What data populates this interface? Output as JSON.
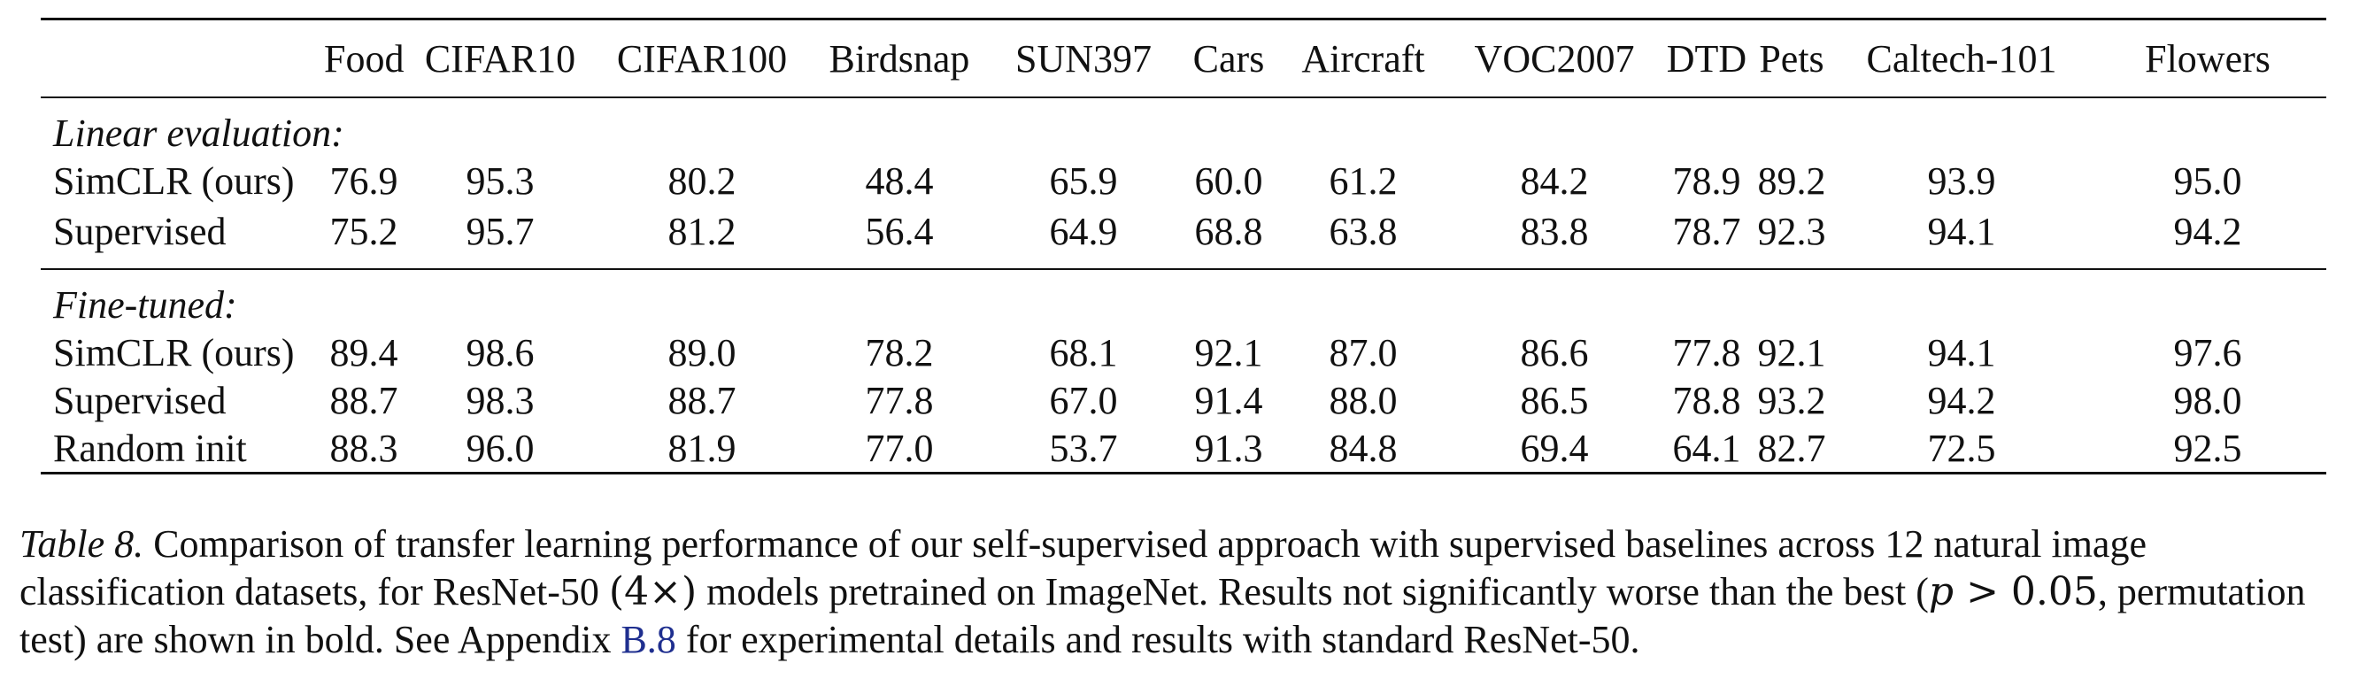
{
  "table": {
    "columns": [
      "Food",
      "CIFAR10",
      "CIFAR100",
      "Birdsnap",
      "SUN397",
      "Cars",
      "Aircraft",
      "VOC2007",
      "DTD",
      "Pets",
      "Caltech-101",
      "Flowers"
    ],
    "sections": [
      {
        "title": "Linear evaluation:",
        "rows": [
          {
            "label": "SimCLR (ours)",
            "values": [
              "76.9",
              "95.3",
              "80.2",
              "48.4",
              "65.9",
              "60.0",
              "61.2",
              "84.2",
              "78.9",
              "89.2",
              "93.9",
              "95.0"
            ],
            "bold": [
              true,
              true,
              false,
              false,
              true,
              false,
              false,
              true,
              true,
              false,
              true,
              true
            ]
          },
          {
            "label": "Supervised",
            "values": [
              "75.2",
              "95.7",
              "81.2",
              "56.4",
              "64.9",
              "68.8",
              "63.8",
              "83.8",
              "78.7",
              "92.3",
              "94.1",
              "94.2"
            ],
            "bold": [
              false,
              true,
              true,
              true,
              false,
              true,
              true,
              false,
              true,
              true,
              true,
              false
            ]
          }
        ]
      },
      {
        "title": "Fine-tuned:",
        "rows": [
          {
            "label": "SimCLR (ours)",
            "values": [
              "89.4",
              "98.6",
              "89.0",
              "78.2",
              "68.1",
              "92.1",
              "87.0",
              "86.6",
              "77.8",
              "92.1",
              "94.1",
              "97.6"
            ],
            "bold": [
              true,
              true,
              true,
              true,
              true,
              true,
              true,
              true,
              true,
              false,
              true,
              false
            ]
          },
          {
            "label": "Supervised",
            "values": [
              "88.7",
              "98.3",
              "88.7",
              "77.8",
              "67.0",
              "91.4",
              "88.0",
              "86.5",
              "78.8",
              "93.2",
              "94.2",
              "98.0"
            ],
            "bold": [
              false,
              false,
              true,
              true,
              false,
              false,
              true,
              false,
              true,
              true,
              true,
              true
            ]
          },
          {
            "label": "Random init",
            "values": [
              "88.3",
              "96.0",
              "81.9",
              "77.0",
              "53.7",
              "91.3",
              "84.8",
              "69.4",
              "64.1",
              "82.7",
              "72.5",
              "92.5"
            ],
            "bold": [
              false,
              false,
              false,
              true,
              false,
              false,
              false,
              false,
              false,
              false,
              false,
              false
            ]
          }
        ]
      }
    ]
  },
  "caption": {
    "label": "Table 8.",
    "text_1": " Comparison of transfer learning performance of our self-supervised approach with supervised baselines across 12 natural image classification datasets, for ResNet-50 ",
    "math_model": "(4×)",
    "text_2": " models pretrained on ImageNet. Results not significantly worse than the best (",
    "math_p": "p",
    "math_cond": " > 0.05",
    "text_3": ", permutation test) are shown in bold. See Appendix ",
    "appendix_link": "B.8",
    "text_4": " for experimental details and results with standard ResNet-50."
  }
}
